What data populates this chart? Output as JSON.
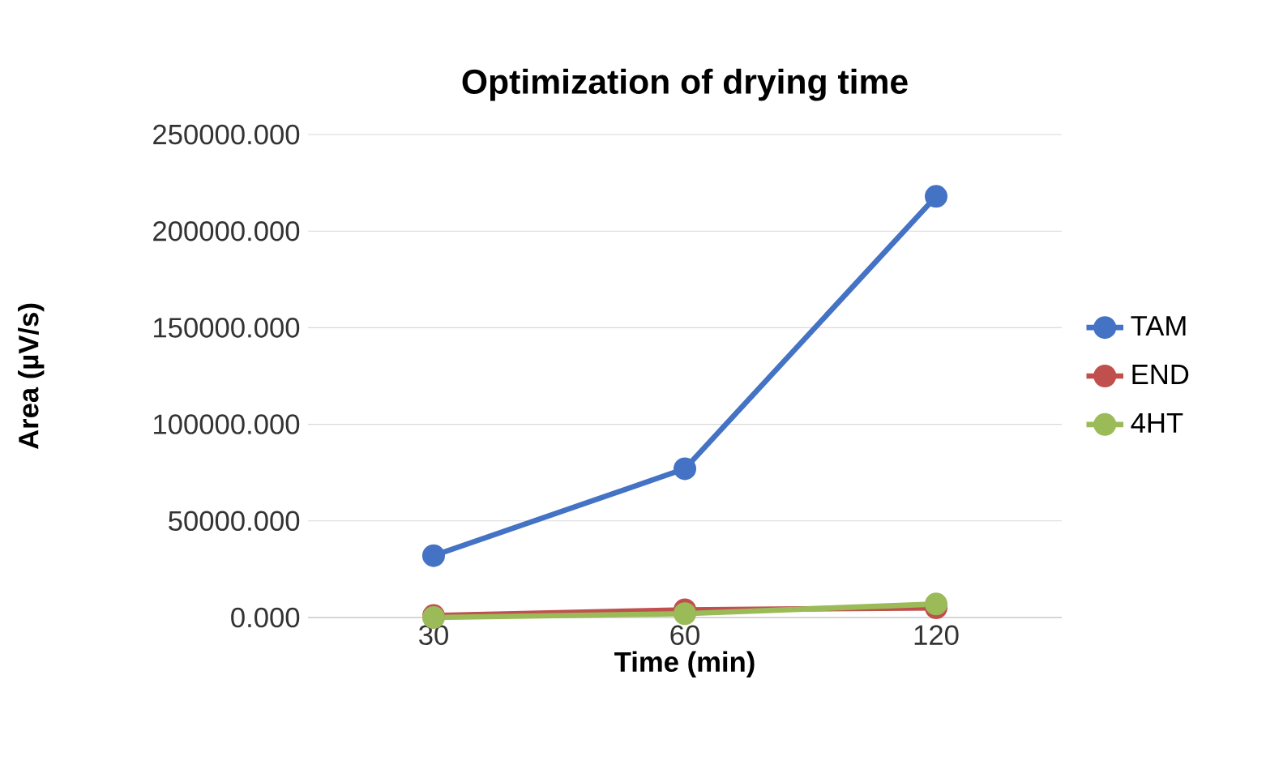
{
  "chart_data": {
    "type": "line",
    "title": "Optimization of drying time",
    "xlabel": "Time (min)",
    "ylabel": "Area (µV/s)",
    "categories": [
      "30",
      "60",
      "120"
    ],
    "series": [
      {
        "name": "TAM",
        "color": "#4472c4",
        "values": [
          32000,
          77000,
          218000
        ]
      },
      {
        "name": "END",
        "color": "#c0504d",
        "values": [
          1000,
          4000,
          5000
        ]
      },
      {
        "name": "4HT",
        "color": "#9bbb59",
        "values": [
          0,
          2000,
          7000
        ]
      }
    ],
    "ylim": [
      0,
      250000
    ],
    "yticks": [
      {
        "value": 0,
        "label": "0.000"
      },
      {
        "value": 50000,
        "label": "50000.000"
      },
      {
        "value": 100000,
        "label": "100000.000"
      },
      {
        "value": 150000,
        "label": "150000.000"
      },
      {
        "value": 200000,
        "label": "200000.000"
      },
      {
        "value": 250000,
        "label": "250000.000"
      }
    ],
    "grid": "y",
    "legend": "right",
    "marker": "circle",
    "line_style": "solid"
  }
}
